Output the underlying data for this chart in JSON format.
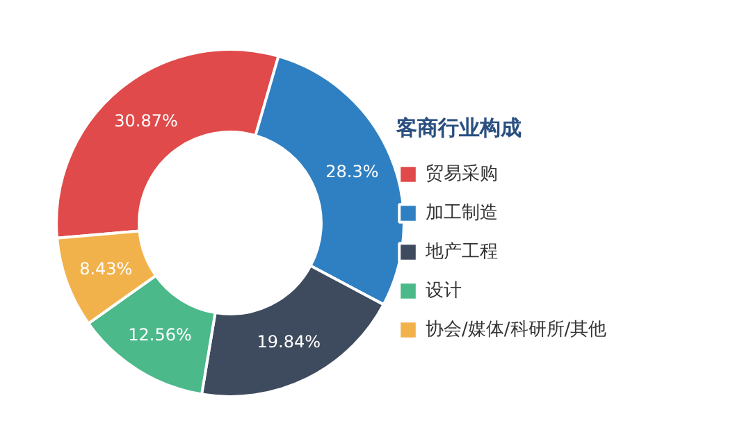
{
  "chart_data": {
    "type": "donut",
    "legend_title": "客商行业构成",
    "categories": [
      "贸易采购",
      "加工制造",
      "地产工程",
      "设计",
      "协会/媒体/科研所/其他"
    ],
    "values": [
      30.87,
      28.3,
      19.84,
      12.56,
      8.43
    ],
    "colors": [
      "#e04a4a",
      "#2f80c2",
      "#3e4b5e",
      "#4bb98a",
      "#f2b24b"
    ],
    "value_labels": [
      "30.87%",
      "28.3%",
      "19.84%",
      "12.56%",
      "8.43%"
    ],
    "legend": "right"
  }
}
